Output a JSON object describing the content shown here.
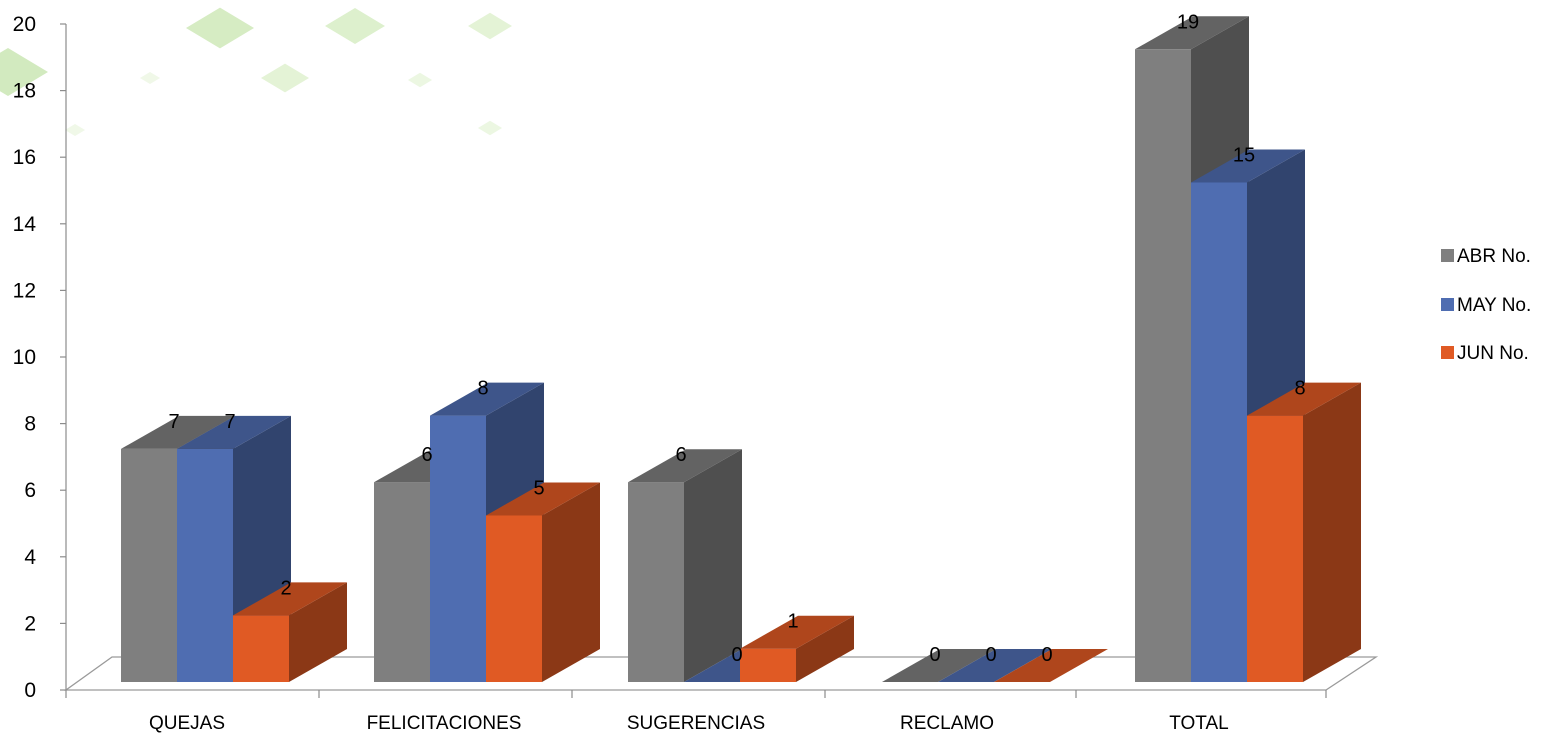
{
  "chart_data": {
    "type": "bar",
    "categories": [
      "QUEJAS",
      "FELICITACIONES",
      "SUGERENCIAS",
      "RECLAMO",
      "TOTAL"
    ],
    "series": [
      {
        "name": "ABR No.",
        "values": [
          7,
          6,
          6,
          0,
          19
        ],
        "color": "#7f7f7f"
      },
      {
        "name": "MAY No.",
        "values": [
          7,
          8,
          0,
          0,
          15
        ],
        "color": "#4f6db1"
      },
      {
        "name": "JUN No.",
        "values": [
          2,
          5,
          1,
          0,
          8
        ],
        "color": "#e05a24"
      }
    ],
    "ylim": [
      0,
      20
    ],
    "yticks": [
      0,
      2,
      4,
      6,
      8,
      10,
      12,
      14,
      16,
      18,
      20
    ],
    "legend": "right",
    "grid": false,
    "style": "3d-clustered-column"
  }
}
